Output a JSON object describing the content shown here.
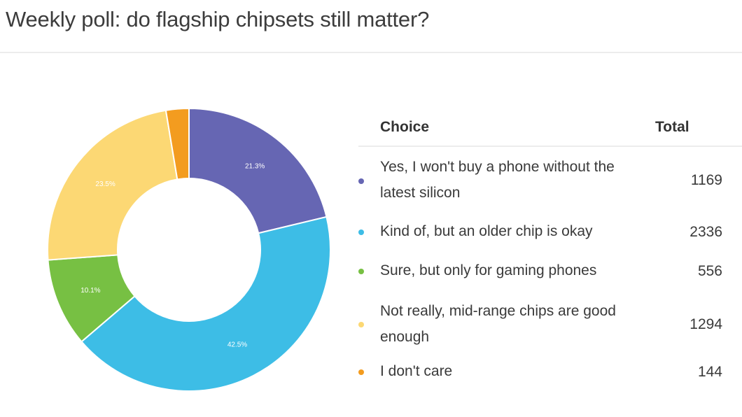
{
  "page_title": "Weekly poll: do flagship chipsets still matter?",
  "table": {
    "col_choice": "Choice",
    "col_total": "Total",
    "rows": [
      {
        "choice": "Yes, I won't buy a phone without the latest silicon",
        "total": "1169",
        "color": "#6666b3"
      },
      {
        "choice": "Kind of, but an older chip is okay",
        "total": "2336",
        "color": "#3dbde6"
      },
      {
        "choice": "Sure, but only for gaming phones",
        "total": "556",
        "color": "#77c043"
      },
      {
        "choice": "Not really, mid-range chips are good enough",
        "total": "1294",
        "color": "#fcd874"
      },
      {
        "choice": "I don't care",
        "total": "144",
        "color": "#f39c1f"
      }
    ]
  },
  "chart_data": {
    "type": "pie",
    "donut": true,
    "categories": [
      "Yes, I won't buy a phone without the latest silicon",
      "Kind of, but an older chip is okay",
      "Sure, but only for gaming phones",
      "Not really, mid-range chips are good enough",
      "I don't care"
    ],
    "values": [
      1169,
      2336,
      556,
      1294,
      144
    ],
    "data_labels": [
      "21.3%",
      "42.5%",
      "10.1%",
      "23.5%",
      ""
    ],
    "colors": [
      "#6666b3",
      "#3dbde6",
      "#77c043",
      "#fcd874",
      "#f39c1f"
    ],
    "title": "Weekly poll: do flagship chipsets still matter?",
    "legend": "right"
  }
}
